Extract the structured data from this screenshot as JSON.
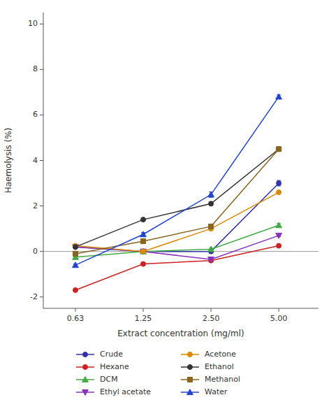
{
  "chart_data": {
    "type": "line",
    "xlabel": "Extract concentration (mg/ml)",
    "ylabel": "Haemolysis (%)",
    "x": [
      0.625,
      1.25,
      2.5,
      5.0
    ],
    "series": [
      {
        "name": "Crude",
        "color": "#3333aa",
        "marker": "circle",
        "values": [
          0.2,
          0.0,
          0.0,
          3.0
        ],
        "errors": [
          0.05,
          0.05,
          0.05,
          0.12
        ]
      },
      {
        "name": "Hexane",
        "color": "#cc2222",
        "marker": "circle",
        "values": [
          -1.7,
          -0.55,
          -0.4,
          0.25
        ],
        "errors": [
          0.05,
          0.05,
          0.05,
          0.05
        ]
      },
      {
        "name": "DCM",
        "color": "#44aa44",
        "marker": "triangle-up",
        "values": [
          -0.25,
          0.0,
          0.1,
          1.15
        ],
        "errors": [
          0.05,
          0.05,
          0.05,
          0.08
        ]
      },
      {
        "name": "Ethyl acetate",
        "color": "#8833bb",
        "marker": "triangle-down",
        "values": [
          0.2,
          0.0,
          -0.35,
          0.7
        ],
        "errors": [
          0.05,
          0.05,
          0.05,
          0.05
        ]
      },
      {
        "name": "Acetone",
        "color": "#dd8800",
        "marker": "circle",
        "values": [
          0.25,
          0.0,
          1.0,
          2.6
        ],
        "errors": [
          0.05,
          0.05,
          0.08,
          0.05
        ]
      },
      {
        "name": "Ethanol",
        "color": "#333333",
        "marker": "circle",
        "values": [
          0.2,
          1.4,
          2.1,
          4.5
        ],
        "errors": [
          0.05,
          0.05,
          0.08,
          0.05
        ]
      },
      {
        "name": "Methanol",
        "color": "#886622",
        "marker": "square",
        "values": [
          -0.1,
          0.45,
          1.1,
          4.5
        ],
        "errors": [
          0.05,
          0.05,
          0.1,
          0.05
        ]
      },
      {
        "name": "Water",
        "color": "#2244cc",
        "marker": "triangle-up",
        "values": [
          -0.6,
          0.75,
          2.5,
          6.8
        ],
        "errors": [
          0.05,
          0.08,
          0.12,
          0.08
        ]
      }
    ],
    "hline": 0,
    "log": "x",
    "xlim": [
      0.45,
      7.5
    ],
    "xticks": [
      {
        "value": 0.625,
        "label": "0.63"
      },
      1.25,
      {
        "value": 2.5,
        "label": "2.50"
      },
      {
        "value": 5.0,
        "label": "5.00"
      }
    ],
    "ylim": [
      -2.5,
      10.5
    ],
    "yticks": [
      -2,
      0,
      2,
      4,
      6,
      8,
      10
    ],
    "legend": "bottom"
  }
}
